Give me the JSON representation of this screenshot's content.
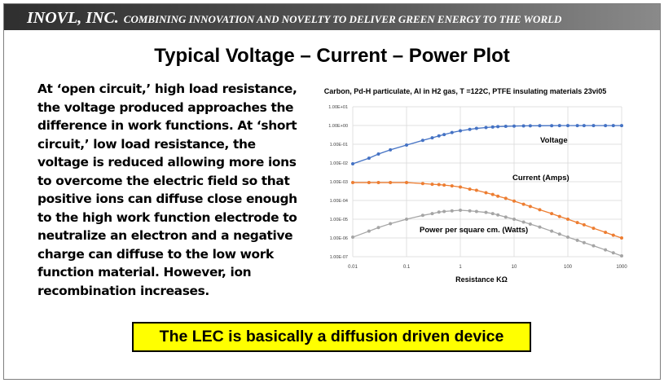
{
  "header": {
    "company": "INOVL, INC.",
    "tagline": "COMBINING INNOVATION AND NOVELTY TO DELIVER GREEN ENERGY TO THE WORLD"
  },
  "slide": {
    "title": "Typical Voltage – Current – Power Plot",
    "body": "At ‘open circuit,’ high load resistance, the voltage produced approaches the difference in work functions.  At ‘short circuit,’ low load resistance, the voltage is reduced allowing more ions to overcome the electric field so that positive ions can diffuse close enough to the high work function electrode to neutralize an electron and a negative charge can diffuse to the low work function material.  However, ion recombination increases.",
    "callout": "The LEC is basically a diffusion driven device"
  },
  "chart_data": {
    "type": "line",
    "title": "Carbon, Pd-H particulate, Al in H2 gas, T =122C, PTFE insulating materials  23vi05",
    "xlabel": "Resistance KΩ",
    "ylabel": "",
    "xscale": "log",
    "yscale": "log",
    "xlim": [
      0.01,
      1000
    ],
    "ylim": [
      1e-07,
      10
    ],
    "x_ticks": [
      "0.01",
      "0.1",
      "1",
      "10",
      "100",
      "1000"
    ],
    "y_ticks": [
      "1.00E-07",
      "1.00E-06",
      "1.00E-05",
      "1.00E-04",
      "1.00E-03",
      "1.00E-02",
      "1.00E-01",
      "1.00E+00",
      "1.00E+01"
    ],
    "grid": true,
    "series": [
      {
        "name": "Voltage",
        "color": "#4472c4",
        "x": [
          0.01,
          0.02,
          0.03,
          0.05,
          0.1,
          0.2,
          0.3,
          0.4,
          0.5,
          0.7,
          1,
          1.5,
          2,
          3,
          4,
          5,
          7,
          10,
          15,
          20,
          30,
          50,
          70,
          100,
          150,
          200,
          300,
          500,
          700,
          1000
        ],
        "y": [
          0.009,
          0.018,
          0.03,
          0.05,
          0.09,
          0.16,
          0.22,
          0.28,
          0.33,
          0.42,
          0.52,
          0.62,
          0.7,
          0.78,
          0.83,
          0.87,
          0.9,
          0.93,
          0.95,
          0.96,
          0.97,
          0.98,
          0.985,
          0.99,
          0.99,
          0.99,
          0.99,
          0.99,
          0.99,
          0.99
        ]
      },
      {
        "name": "Current (Amps)",
        "color": "#ed7d31",
        "x": [
          0.01,
          0.02,
          0.03,
          0.05,
          0.1,
          0.2,
          0.3,
          0.4,
          0.5,
          0.7,
          1,
          1.5,
          2,
          3,
          4,
          5,
          7,
          10,
          15,
          20,
          30,
          50,
          70,
          100,
          150,
          200,
          300,
          500,
          700,
          1000
        ],
        "y": [
          0.0009,
          0.0009,
          0.0009,
          0.0009,
          0.0009,
          0.0008,
          0.00073,
          0.0007,
          0.00066,
          0.0006,
          0.00052,
          0.0004,
          0.00035,
          0.00026,
          0.00021,
          0.00017,
          0.00013,
          9.3e-05,
          6.3e-05,
          4.8e-05,
          3.2e-05,
          2e-05,
          1.4e-05,
          1e-05,
          6.6e-06,
          5e-06,
          3.3e-06,
          2e-06,
          1.4e-06,
          1e-06
        ]
      },
      {
        "name": "Power per square cm. (Watts)",
        "color": "#a5a5a5",
        "x": [
          0.01,
          0.02,
          0.03,
          0.05,
          0.1,
          0.2,
          0.3,
          0.4,
          0.5,
          0.7,
          1,
          1.5,
          2,
          3,
          4,
          5,
          7,
          10,
          15,
          20,
          30,
          50,
          70,
          100,
          150,
          200,
          300,
          500,
          700,
          1000
        ],
        "y": [
          1.1e-06,
          2.3e-06,
          3.6e-06,
          5.8e-06,
          1e-05,
          1.6e-05,
          2e-05,
          2.4e-05,
          2.6e-05,
          2.8e-05,
          3e-05,
          2.8e-05,
          2.6e-05,
          2.3e-05,
          2e-05,
          1.7e-05,
          1.3e-05,
          1e-05,
          7e-06,
          5.5e-06,
          3.8e-06,
          2.3e-06,
          1.6e-06,
          1.1e-06,
          7.5e-07,
          5.6e-07,
          3.8e-07,
          2.3e-07,
          1.6e-07,
          1.1e-07
        ]
      }
    ]
  }
}
